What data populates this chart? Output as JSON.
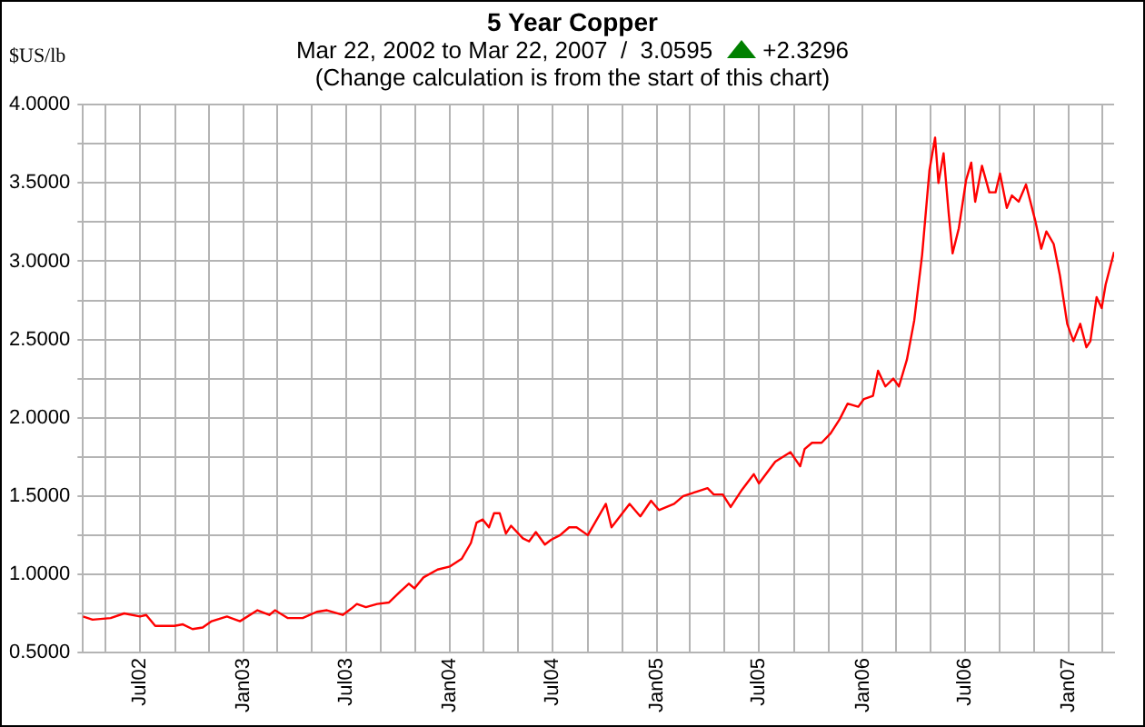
{
  "chart_data": {
    "type": "line",
    "title": "5 Year Copper",
    "subtitle": "Mar 22, 2002 to Mar 22, 2007  /  3.0595",
    "ylabel": "$US/lb",
    "annotations": [
      "+2.3296",
      "(Change calculation is from the start of this chart)"
    ],
    "x": [
      "2002-03-22",
      "2002-04-08",
      "2002-05-10",
      "2002-06-03",
      "2002-07-01",
      "2002-07-12",
      "2002-07-28",
      "2002-08-31",
      "2002-09-15",
      "2002-10-02",
      "2002-10-20",
      "2002-11-05",
      "2002-12-02",
      "2002-12-25",
      "2003-01-25",
      "2003-02-15",
      "2003-02-25",
      "2003-03-20",
      "2003-04-15",
      "2003-05-10",
      "2003-05-28",
      "2003-06-25",
      "2003-07-10",
      "2003-07-20",
      "2003-08-05",
      "2003-08-25",
      "2003-09-15",
      "2003-10-05",
      "2003-10-20",
      "2003-10-30",
      "2003-11-15",
      "2003-12-10",
      "2004-01-01",
      "2004-01-22",
      "2004-02-07",
      "2004-02-17",
      "2004-02-28",
      "2004-03-10",
      "2004-03-19",
      "2004-03-29",
      "2004-04-09",
      "2004-04-18",
      "2004-05-09",
      "2004-05-20",
      "2004-06-01",
      "2004-06-17",
      "2004-06-28",
      "2004-07-14",
      "2004-07-30",
      "2004-08-12",
      "2004-09-01",
      "2004-10-03",
      "2004-10-13",
      "2004-11-14",
      "2004-12-03",
      "2004-12-22",
      "2005-01-05",
      "2005-02-01",
      "2005-02-17",
      "2005-03-15",
      "2005-04-01",
      "2005-04-12",
      "2005-04-28",
      "2005-05-12",
      "2005-06-01",
      "2005-06-22",
      "2005-07-01",
      "2005-07-30",
      "2005-08-26",
      "2005-09-12",
      "2005-09-20",
      "2005-10-03",
      "2005-10-20",
      "2005-11-05",
      "2005-11-21",
      "2005-12-05",
      "2005-12-24",
      "2006-01-03",
      "2006-01-19",
      "2006-01-28",
      "2006-02-10",
      "2006-02-24",
      "2006-03-06",
      "2006-03-20",
      "2006-04-02",
      "2006-04-16",
      "2006-04-29",
      "2006-05-09",
      "2006-05-15",
      "2006-05-24",
      "2006-06-02",
      "2006-06-09",
      "2006-06-20",
      "2006-07-03",
      "2006-07-12",
      "2006-07-19",
      "2006-07-31",
      "2006-08-13",
      "2006-08-24",
      "2006-09-01",
      "2006-09-13",
      "2006-09-22",
      "2006-10-04",
      "2006-10-17",
      "2006-11-03",
      "2006-11-13",
      "2006-11-22",
      "2006-12-05",
      "2006-12-16",
      "2006-12-29",
      "2007-01-09",
      "2007-01-21",
      "2007-02-01",
      "2007-02-08",
      "2007-02-19",
      "2007-02-28",
      "2007-03-07",
      "2007-03-22"
    ],
    "series": [
      {
        "color": "#ff0000",
        "values": [
          0.73,
          0.71,
          0.72,
          0.75,
          0.73,
          0.74,
          0.67,
          0.67,
          0.68,
          0.65,
          0.66,
          0.7,
          0.73,
          0.7,
          0.77,
          0.74,
          0.77,
          0.72,
          0.72,
          0.76,
          0.77,
          0.74,
          0.78,
          0.81,
          0.79,
          0.81,
          0.82,
          0.89,
          0.94,
          0.91,
          0.98,
          1.03,
          1.05,
          1.1,
          1.2,
          1.33,
          1.35,
          1.3,
          1.39,
          1.39,
          1.26,
          1.31,
          1.23,
          1.21,
          1.27,
          1.19,
          1.22,
          1.25,
          1.3,
          1.3,
          1.25,
          1.45,
          1.3,
          1.45,
          1.37,
          1.47,
          1.41,
          1.45,
          1.5,
          1.53,
          1.55,
          1.51,
          1.51,
          1.43,
          1.54,
          1.64,
          1.58,
          1.72,
          1.78,
          1.69,
          1.8,
          1.84,
          1.84,
          1.9,
          1.99,
          2.09,
          2.07,
          2.12,
          2.14,
          2.3,
          2.2,
          2.25,
          2.2,
          2.37,
          2.62,
          3.04,
          3.58,
          3.79,
          3.5,
          3.69,
          3.31,
          3.05,
          3.21,
          3.52,
          3.63,
          3.38,
          3.61,
          3.44,
          3.44,
          3.56,
          3.34,
          3.42,
          3.38,
          3.49,
          3.25,
          3.08,
          3.19,
          3.11,
          2.91,
          2.6,
          2.49,
          2.6,
          2.45,
          2.49,
          2.77,
          2.7,
          2.85,
          3.0595
        ]
      }
    ],
    "xlim": [
      "2002-03-22",
      "2007-03-22"
    ],
    "xticks": [
      {
        "value": "2002-05-01",
        "label": null
      },
      {
        "value": "2002-07-01",
        "label": "Jul02"
      },
      {
        "value": "2002-09-01",
        "label": null
      },
      {
        "value": "2002-11-01",
        "label": null
      },
      {
        "value": "2003-01-01",
        "label": "Jan03"
      },
      {
        "value": "2003-03-01",
        "label": null
      },
      {
        "value": "2003-05-01",
        "label": null
      },
      {
        "value": "2003-07-01",
        "label": "Jul03"
      },
      {
        "value": "2003-09-01",
        "label": null
      },
      {
        "value": "2003-11-01",
        "label": null
      },
      {
        "value": "2004-01-01",
        "label": "Jan04"
      },
      {
        "value": "2004-03-01",
        "label": null
      },
      {
        "value": "2004-05-01",
        "label": null
      },
      {
        "value": "2004-07-01",
        "label": "Jul04"
      },
      {
        "value": "2004-09-01",
        "label": null
      },
      {
        "value": "2004-11-01",
        "label": null
      },
      {
        "value": "2005-01-01",
        "label": "Jan05"
      },
      {
        "value": "2005-03-01",
        "label": null
      },
      {
        "value": "2005-05-01",
        "label": null
      },
      {
        "value": "2005-07-01",
        "label": "Jul05"
      },
      {
        "value": "2005-09-01",
        "label": null
      },
      {
        "value": "2005-11-01",
        "label": null
      },
      {
        "value": "2006-01-01",
        "label": "Jan06"
      },
      {
        "value": "2006-03-01",
        "label": null
      },
      {
        "value": "2006-05-01",
        "label": null
      },
      {
        "value": "2006-07-01",
        "label": "Jul06"
      },
      {
        "value": "2006-09-01",
        "label": null
      },
      {
        "value": "2006-11-01",
        "label": null
      },
      {
        "value": "2007-01-01",
        "label": "Jan07"
      },
      {
        "value": "2007-03-01",
        "label": null
      }
    ],
    "ylim": [
      0.5,
      4
    ],
    "yticks": [
      {
        "value": 0.5,
        "label": "0.5000"
      },
      {
        "value": 0.75,
        "label": null
      },
      {
        "value": 1,
        "label": "1.0000"
      },
      {
        "value": 1.25,
        "label": null
      },
      {
        "value": 1.5,
        "label": "1.5000"
      },
      {
        "value": 1.75,
        "label": null
      },
      {
        "value": 2,
        "label": "2.0000"
      },
      {
        "value": 2.25,
        "label": null
      },
      {
        "value": 2.5,
        "label": "2.5000"
      },
      {
        "value": 2.75,
        "label": null
      },
      {
        "value": 3,
        "label": "3.0000"
      },
      {
        "value": 3.25,
        "label": null
      },
      {
        "value": 3.5,
        "label": "3.5000"
      },
      {
        "value": 3.75,
        "label": null
      },
      {
        "value": 4,
        "label": "4.0000"
      }
    ],
    "grid": true,
    "legend": false,
    "marker": "none",
    "line_style": "solid"
  }
}
